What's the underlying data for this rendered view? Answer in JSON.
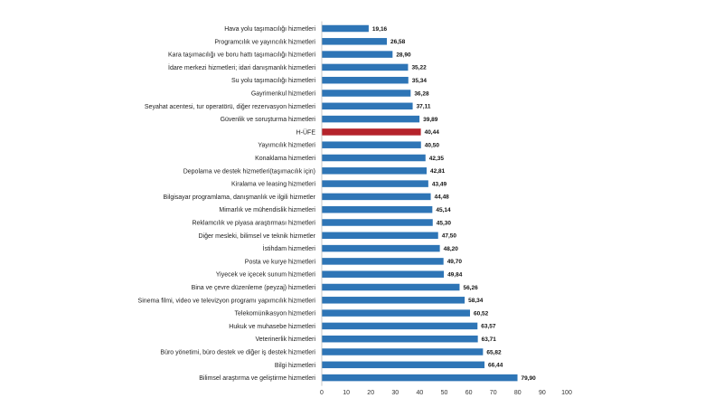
{
  "chart_data": {
    "type": "bar",
    "orientation": "horizontal",
    "title": "",
    "xlabel": "",
    "ylabel": "",
    "xlim": [
      0,
      100
    ],
    "x_ticks": [
      "0",
      "10",
      "20",
      "30",
      "40",
      "50",
      "60",
      "70",
      "80",
      "90",
      "100"
    ],
    "grid": false,
    "bar_color": "#2e75b6",
    "highlight_color": "#b5232b",
    "highlight_category": "H-ÜFE",
    "categories": [
      "Hava yolu taşımacılığı hizmetleri",
      "Programcılık ve yayıncılık hizmetleri",
      "Kara taşımacılığı ve boru hattı taşımacılığı hizmetleri",
      "İdare merkezi hizmetleri; idari danışmanlık hizmetleri",
      "Su yolu taşımacılığı hizmetleri",
      "Gayrimenkul hizmetleri",
      "Seyahat acentesi, tur operatörü, diğer rezervasyon hizmetleri",
      "Güvenlik ve soruşturma hizmetleri",
      "H-ÜFE",
      "Yayımcılık hizmetleri",
      "Konaklama hizmetleri",
      "Depolama ve destek hizmetleri(taşımacılık için)",
      "Kiralama ve leasing hizmetleri",
      "Bilgisayar programlama, danışmanlık ve ilgili hizmetler",
      "Mimarlık ve mühendislik hizmetleri",
      "Reklamcılık ve piyasa araştırması hizmetleri",
      "Diğer mesleki, bilimsel ve teknik hizmetler",
      "İstihdam hizmetleri",
      "Posta ve kurye hizmetleri",
      "Yiyecek ve içecek sunum hizmetleri",
      "Bina ve çevre düzenleme (peyzaj) hizmetleri",
      "Sinema filmi, video ve televizyon programı yapımcılık hizmetleri",
      "Telekomünikasyon hizmetleri",
      "Hukuk ve muhasebe hizmetleri",
      "Veterinerlik hizmetleri",
      "Büro yönetimi, büro destek ve diğer iş destek hizmetleri",
      "Bilgi hizmetleri",
      "Bilimsel araştırma ve geliştirme hizmetleri"
    ],
    "values": [
      19.16,
      26.58,
      28.9,
      35.22,
      35.34,
      36.28,
      37.11,
      39.89,
      40.44,
      40.5,
      42.35,
      42.81,
      43.49,
      44.48,
      45.14,
      45.3,
      47.5,
      48.2,
      49.7,
      49.84,
      56.26,
      58.34,
      60.52,
      63.57,
      63.71,
      65.82,
      66.44,
      79.9
    ],
    "value_labels": [
      "19,16",
      "26,58",
      "28,90",
      "35,22",
      "35,34",
      "36,28",
      "37,11",
      "39,89",
      "40,44",
      "40,50",
      "42,35",
      "42,81",
      "43,49",
      "44,48",
      "45,14",
      "45,30",
      "47,50",
      "48,20",
      "49,70",
      "49,84",
      "56,26",
      "58,34",
      "60,52",
      "63,57",
      "63,71",
      "65,82",
      "66,44",
      "79,90"
    ]
  }
}
